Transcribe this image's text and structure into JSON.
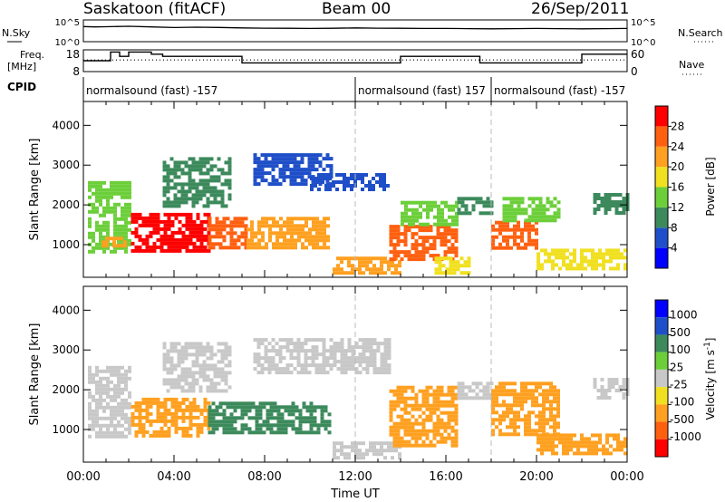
{
  "header": {
    "station": "Saskatoon (fitACF)",
    "beam": "Beam 00",
    "date": "26/Sep/2011"
  },
  "strip_labels": {
    "nsky": "N.Sky",
    "nsearch": "N.Search",
    "freq_line1": "Freq.",
    "freq_line2": "[MHz]",
    "nave": "Nave",
    "cpid": "CPID",
    "nsky_ticks": [
      "10^5",
      "10^0"
    ],
    "nsearch_ticks": [
      "10^5",
      "10^0"
    ],
    "freq_ticks": [
      "18",
      "8"
    ],
    "nave_ticks": [
      "60",
      "0"
    ]
  },
  "cpid_segments": [
    {
      "label": "normalsound (fast) -157",
      "start_h": 0
    },
    {
      "label": "normalsound (fast) 157",
      "start_h": 12
    },
    {
      "label": "normalsound (fast) -157",
      "start_h": 18
    }
  ],
  "axes": {
    "ylabel": "Slant Range [km]",
    "xlabel": "Time UT",
    "xticks": [
      "00:00",
      "04:00",
      "08:00",
      "12:00",
      "16:00",
      "20:00",
      "00:00"
    ],
    "yticks": [
      "1000",
      "2000",
      "3000",
      "4000"
    ]
  },
  "colorbars": {
    "power": {
      "label": "Power [dB]",
      "ticks": [
        "4",
        "8",
        "12",
        "16",
        "20",
        "24",
        "28"
      ],
      "colors": [
        "#0000ff",
        "#1f4fc8",
        "#3c8a5c",
        "#6ccf3a",
        "#f0e020",
        "#ffa020",
        "#ff6010",
        "#ff0000"
      ]
    },
    "velocity": {
      "label": "Velocity [m s",
      "unit_exp": "-1",
      "unit_close": "]",
      "ticks": [
        "1000",
        "500",
        "100",
        "25",
        "-25",
        "-100",
        "-500",
        "-1000"
      ],
      "colors": [
        "#0000ff",
        "#1f4fc8",
        "#3c8a5c",
        "#6ccf3a",
        "#c8c8c8",
        "#f0e020",
        "#ffa020",
        "#ff6010",
        "#ff0000"
      ]
    }
  },
  "chart_data": [
    {
      "type": "line",
      "title": "N.Sky / N.Search",
      "xlim": [
        0,
        24
      ],
      "ylog": true,
      "ylim": [
        1,
        100000
      ],
      "series": [
        {
          "name": "N.Sky",
          "style": "solid",
          "x": [
            0,
            0.5,
            1,
            2,
            3,
            4,
            5,
            6,
            7,
            8,
            9,
            10,
            11,
            12,
            13,
            14,
            15,
            16,
            17,
            18,
            19,
            20,
            21,
            22,
            23,
            24
          ],
          "y": [
            3000,
            2500,
            2800,
            3500,
            2500,
            1800,
            2200,
            1900,
            1500,
            1300,
            1200,
            1100,
            1200,
            1500,
            1300,
            1200,
            1100,
            1100,
            1000,
            900,
            1000,
            1100,
            1000,
            900,
            1000,
            1100
          ]
        },
        {
          "name": "N.Search",
          "style": "dotted",
          "x": [
            0,
            6,
            12,
            18,
            24
          ],
          "y": [
            1,
            1,
            1,
            1,
            1
          ]
        }
      ]
    },
    {
      "type": "line",
      "title": "Freq. / Nave",
      "xlim": [
        0,
        24
      ],
      "series": [
        {
          "name": "Freq.",
          "style": "solid",
          "axis": "left",
          "ylim": [
            8,
            18
          ],
          "x": [
            0,
            0.8,
            1.2,
            1.3,
            1.6,
            1.8,
            2.0,
            2.2,
            3.0,
            3.5,
            4.0,
            6.5,
            7.0,
            12.0,
            12.5,
            13.0,
            13.5,
            14.0,
            16.0,
            17.0,
            17.5,
            18.0,
            20.0,
            21.5,
            22.0,
            24
          ],
          "y": [
            13,
            13,
            17,
            17,
            15,
            15,
            17,
            17,
            16,
            15,
            15,
            15,
            12,
            12,
            12,
            12,
            12,
            15,
            15,
            15,
            12,
            12,
            12,
            12,
            16,
            16
          ]
        },
        {
          "name": "Nave",
          "style": "dotted",
          "axis": "right",
          "ylim": [
            0,
            60
          ],
          "x": [
            0,
            24
          ],
          "y": [
            32,
            32
          ]
        }
      ]
    },
    {
      "type": "heatmap",
      "title": "Power",
      "xlim": [
        0,
        24
      ],
      "ylim": [
        180,
        4600
      ],
      "value_label": "Power [dB]",
      "vrange": [
        0,
        32
      ],
      "regions": [
        {
          "t0": 0.2,
          "t1": 2.0,
          "r0": 800,
          "r1": 2600,
          "v": 12
        },
        {
          "t0": 0.8,
          "t1": 1.9,
          "r0": 1000,
          "r1": 1200,
          "v": 22
        },
        {
          "t0": 2.1,
          "t1": 5.5,
          "r0": 800,
          "r1": 1800,
          "v": 28
        },
        {
          "t0": 5.5,
          "t1": 7.2,
          "r0": 900,
          "r1": 1700,
          "v": 24
        },
        {
          "t0": 7.2,
          "t1": 10.8,
          "r0": 900,
          "r1": 1700,
          "v": 22
        },
        {
          "t0": 3.5,
          "t1": 6.5,
          "r0": 2000,
          "r1": 3200,
          "v": 8
        },
        {
          "t0": 7.5,
          "t1": 11.0,
          "r0": 2500,
          "r1": 3300,
          "v": 6
        },
        {
          "t0": 10.0,
          "t1": 13.5,
          "r0": 2400,
          "r1": 2800,
          "v": 6
        },
        {
          "t0": 11.0,
          "t1": 14.0,
          "r0": 300,
          "r1": 700,
          "v": 20
        },
        {
          "t0": 13.5,
          "t1": 16.5,
          "r0": 600,
          "r1": 1500,
          "v": 24
        },
        {
          "t0": 14.0,
          "t1": 16.5,
          "r0": 1500,
          "r1": 2100,
          "v": 14
        },
        {
          "t0": 15.5,
          "t1": 17.0,
          "r0": 300,
          "r1": 700,
          "v": 18
        },
        {
          "t0": 16.5,
          "t1": 18.0,
          "r0": 1800,
          "r1": 2200,
          "v": 8
        },
        {
          "t0": 18.0,
          "t1": 20.0,
          "r0": 900,
          "r1": 1600,
          "v": 24
        },
        {
          "t0": 18.5,
          "t1": 21.0,
          "r0": 1600,
          "r1": 2200,
          "v": 12
        },
        {
          "t0": 20.0,
          "t1": 24.0,
          "r0": 400,
          "r1": 900,
          "v": 16
        },
        {
          "t0": 22.5,
          "t1": 24.0,
          "r0": 1800,
          "r1": 2300,
          "v": 8
        }
      ]
    },
    {
      "type": "heatmap",
      "title": "Velocity",
      "xlim": [
        0,
        24
      ],
      "ylim": [
        180,
        4600
      ],
      "value_label": "Velocity [m s-1]",
      "vrange": [
        -1000,
        1000
      ],
      "regions": [
        {
          "t0": 0.2,
          "t1": 2.0,
          "r0": 800,
          "r1": 2600,
          "v": 0
        },
        {
          "t0": 2.1,
          "t1": 5.5,
          "r0": 800,
          "r1": 1800,
          "v": -300
        },
        {
          "t0": 5.5,
          "t1": 10.8,
          "r0": 900,
          "r1": 1700,
          "v": 150
        },
        {
          "t0": 3.5,
          "t1": 6.5,
          "r0": 2000,
          "r1": 3200,
          "v": 0
        },
        {
          "t0": 7.5,
          "t1": 13.5,
          "r0": 2400,
          "r1": 3300,
          "v": 0
        },
        {
          "t0": 11.0,
          "t1": 14.0,
          "r0": 300,
          "r1": 700,
          "v": 0
        },
        {
          "t0": 13.5,
          "t1": 16.5,
          "r0": 600,
          "r1": 2100,
          "v": -200
        },
        {
          "t0": 16.5,
          "t1": 18.0,
          "r0": 1800,
          "r1": 2200,
          "v": 0
        },
        {
          "t0": 18.0,
          "t1": 21.0,
          "r0": 900,
          "r1": 2200,
          "v": -400
        },
        {
          "t0": 20.0,
          "t1": 24.0,
          "r0": 400,
          "r1": 900,
          "v": -150
        },
        {
          "t0": 22.5,
          "t1": 24.0,
          "r0": 1800,
          "r1": 2300,
          "v": 0
        }
      ]
    }
  ]
}
